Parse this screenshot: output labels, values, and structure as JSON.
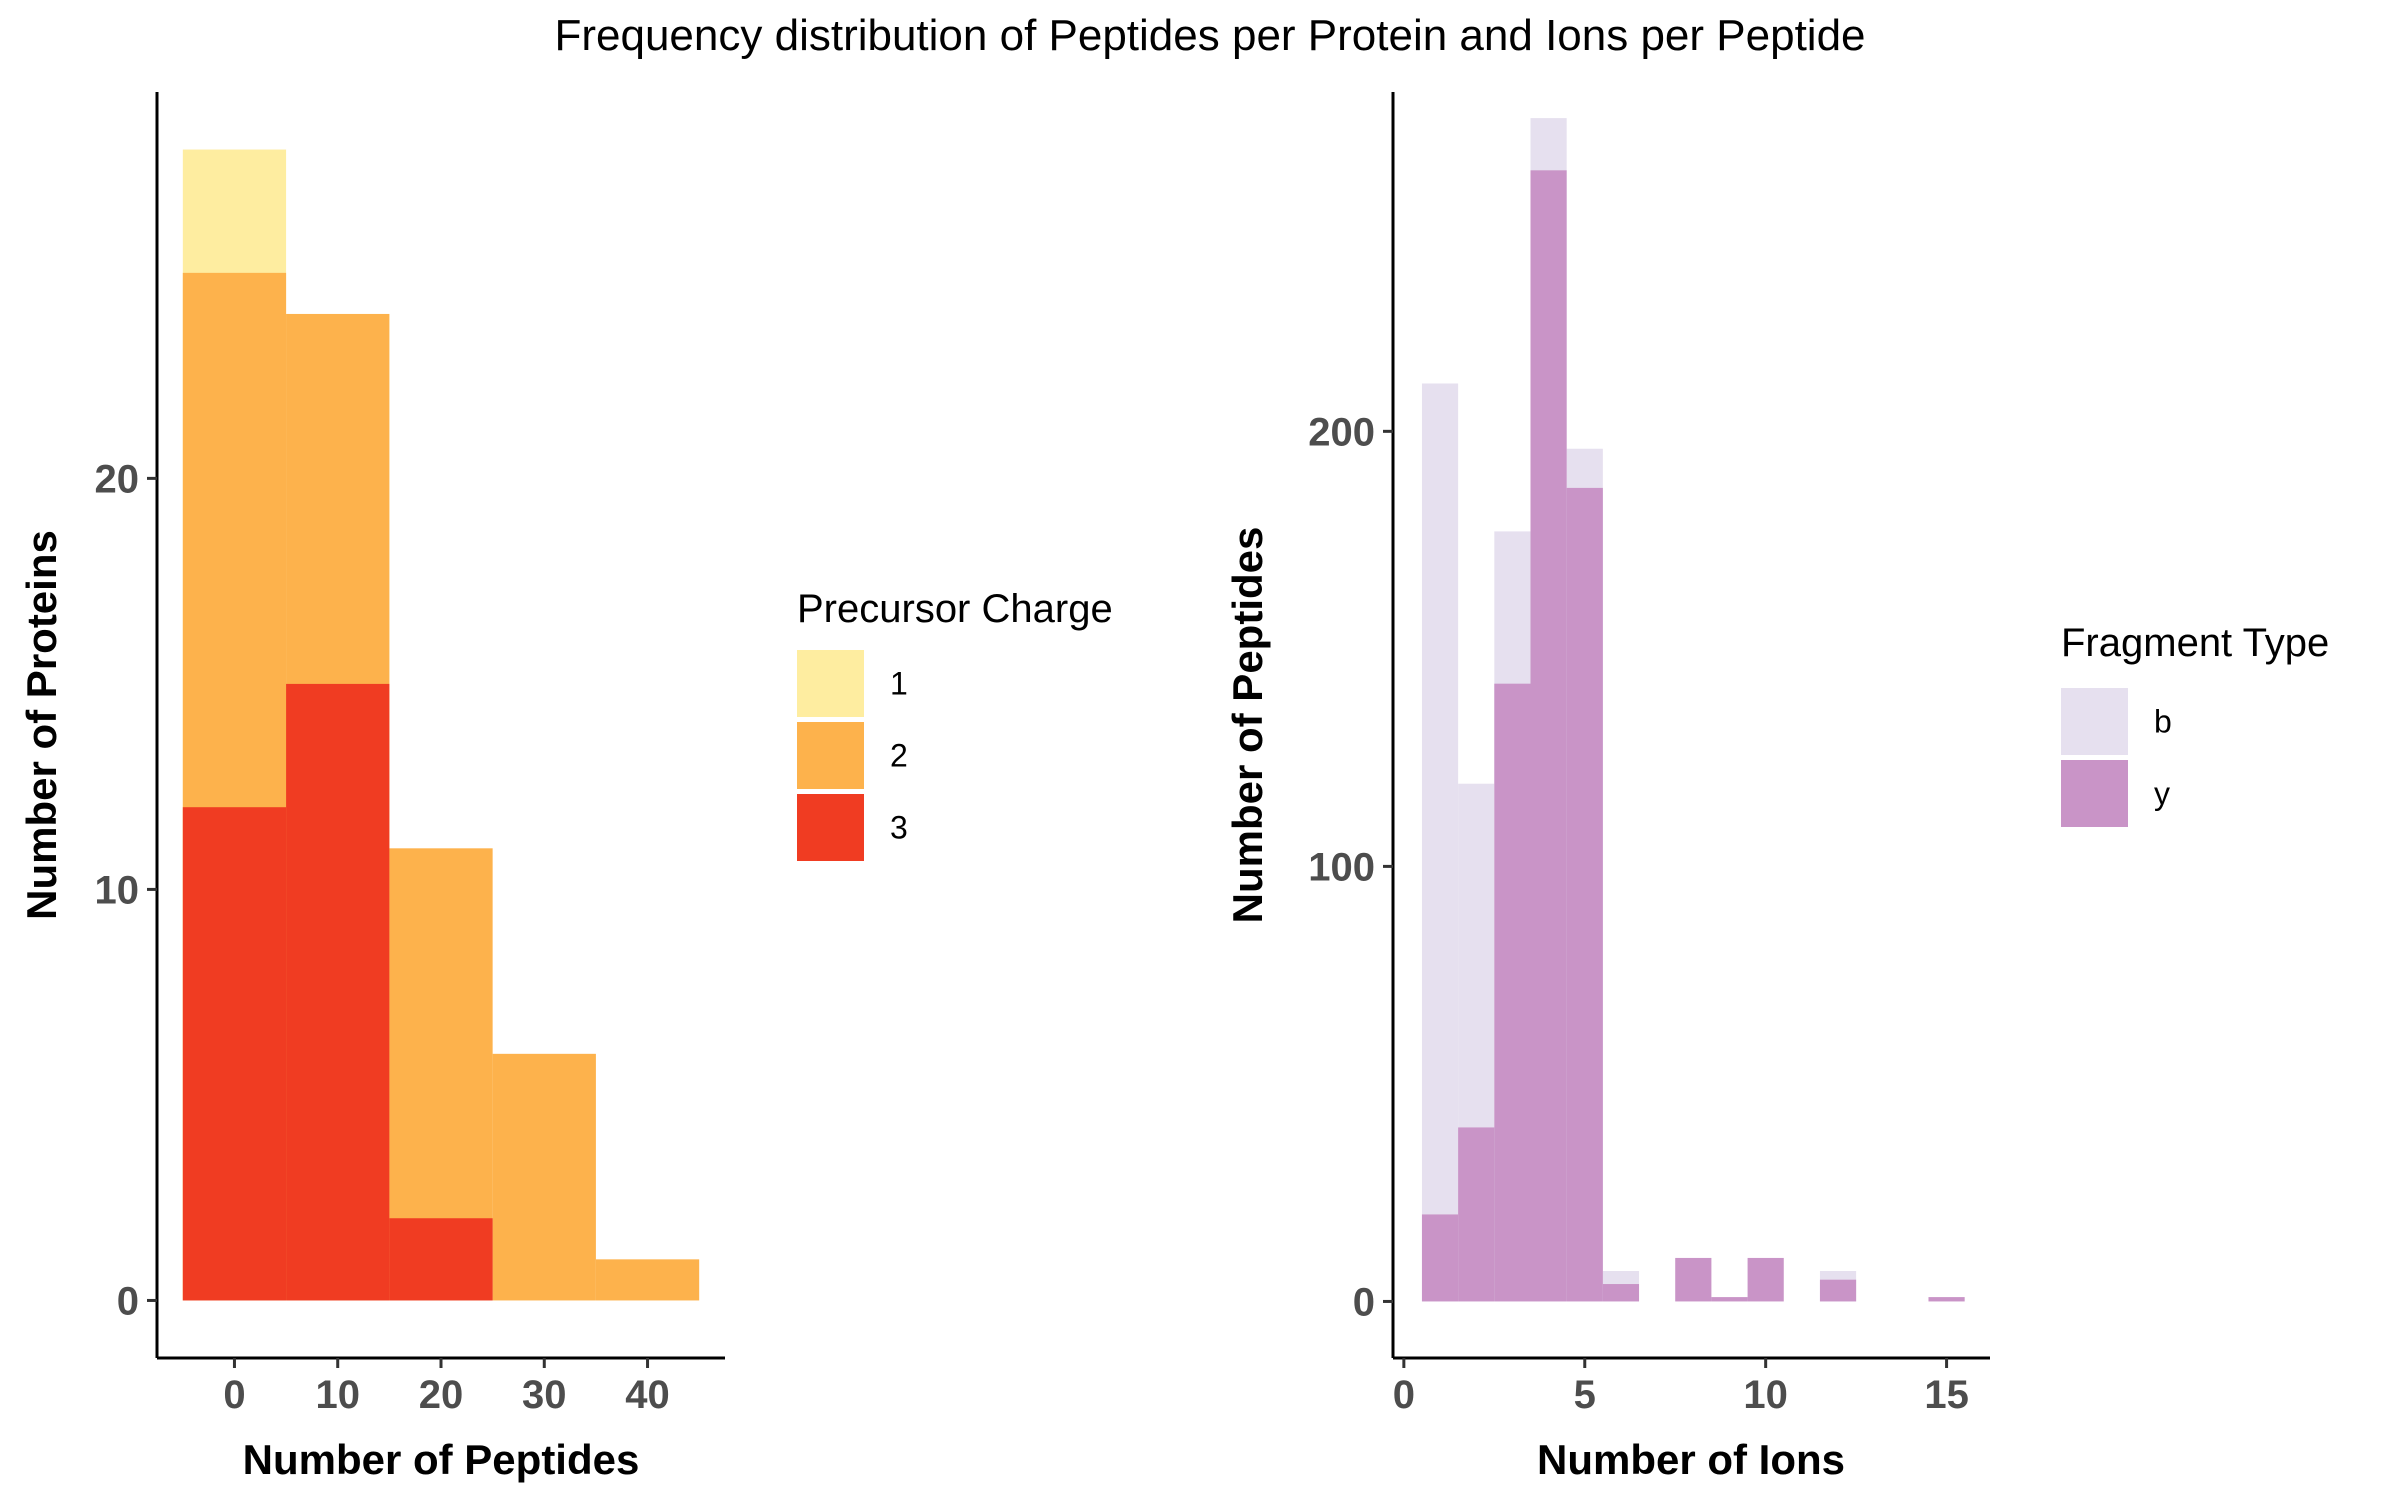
{
  "figure": {
    "title": "Frequency distribution of Peptides per Protein and Ions per Peptide"
  },
  "chart_data": [
    {
      "type": "bar",
      "subtype": "histogram-overlaid",
      "xlabel": "Number of Peptides",
      "ylabel": "Number of Proteins",
      "xlim": [
        -7.5,
        47.5
      ],
      "ylim": [
        -1.4,
        29.4
      ],
      "xticks": [
        0,
        10,
        20,
        30,
        40
      ],
      "yticks": [
        0,
        10,
        20
      ],
      "bins": [
        [
          -5,
          5
        ],
        [
          5,
          15
        ],
        [
          15,
          25
        ],
        [
          25,
          35
        ],
        [
          35,
          45
        ]
      ],
      "series": [
        {
          "name": "1",
          "color": "#FEEDA0",
          "values": [
            28,
            24,
            0,
            0,
            0
          ]
        },
        {
          "name": "2",
          "color": "#FDB24C",
          "values": [
            25,
            24,
            11,
            6,
            1
          ]
        },
        {
          "name": "3",
          "color": "#F03C22",
          "values": [
            12,
            15,
            2,
            0,
            0
          ]
        }
      ],
      "legend": {
        "title": "Precursor Charge",
        "position": "right"
      },
      "grid": false
    },
    {
      "type": "bar",
      "subtype": "histogram-overlaid",
      "xlabel": "Number of Ions",
      "ylabel": "Number of Peptides",
      "xlim": [
        -0.3,
        16.2
      ],
      "ylim": [
        -13,
        278
      ],
      "xticks": [
        0,
        5,
        10,
        15
      ],
      "yticks": [
        0,
        100,
        200
      ],
      "bins": [
        [
          0.5,
          1.5
        ],
        [
          1.5,
          2.5
        ],
        [
          2.5,
          3.5
        ],
        [
          3.5,
          4.5
        ],
        [
          4.5,
          5.5
        ],
        [
          5.5,
          6.5
        ],
        [
          6.5,
          7.5
        ],
        [
          7.5,
          8.5
        ],
        [
          8.5,
          9.5
        ],
        [
          9.5,
          10.5
        ],
        [
          10.5,
          11.5
        ],
        [
          11.5,
          12.5
        ],
        [
          12.5,
          13.5
        ],
        [
          13.5,
          14.5
        ],
        [
          14.5,
          15.5
        ]
      ],
      "series": [
        {
          "name": "b",
          "color": "#E6E0EF",
          "values": [
            211,
            119,
            177,
            272,
            196,
            7,
            0,
            0,
            0,
            0,
            0,
            7,
            0,
            0,
            0
          ]
        },
        {
          "name": "y",
          "color": "#C994C7",
          "values": [
            20,
            40,
            142,
            260,
            187,
            4,
            0,
            10,
            1,
            10,
            0,
            5,
            0,
            0,
            1
          ]
        }
      ],
      "legend": {
        "title": "Fragment Type",
        "position": "right"
      },
      "grid": false
    }
  ]
}
